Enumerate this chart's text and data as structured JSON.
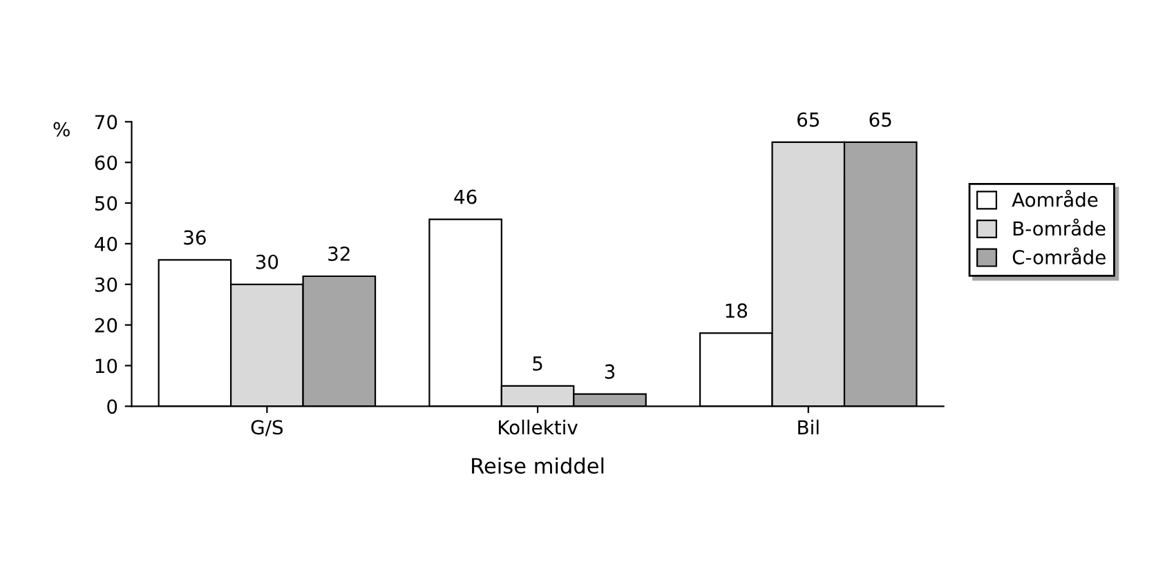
{
  "chart_data": {
    "type": "bar",
    "ylabel": "%",
    "xlabel": "Reise middel",
    "categories": [
      "G/S",
      "Kollektiv",
      "Bil"
    ],
    "series": [
      {
        "name": "Aområde",
        "color": "#ffffff",
        "values": [
          36,
          46,
          18
        ]
      },
      {
        "name": "B-område",
        "color": "#d9d9d9",
        "values": [
          30,
          5,
          65
        ]
      },
      {
        "name": "C-område",
        "color": "#a6a6a6",
        "values": [
          32,
          3,
          65
        ]
      }
    ],
    "ylim": [
      0,
      70
    ],
    "yticks": [
      0,
      10,
      20,
      30,
      40,
      50,
      60,
      70
    ],
    "grid": false,
    "legend": "right",
    "data_labels": true
  }
}
